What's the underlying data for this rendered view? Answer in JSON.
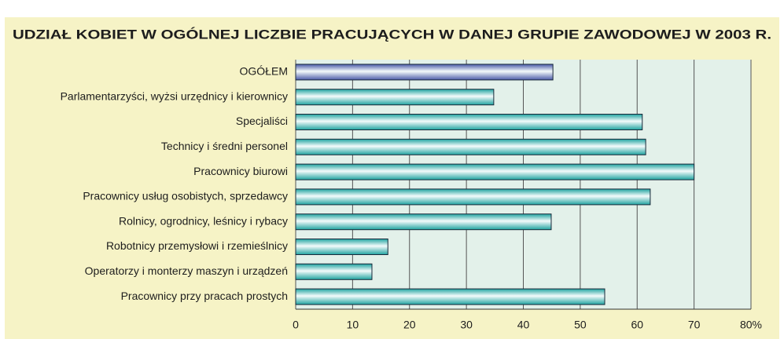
{
  "chart_data": {
    "type": "barh",
    "title": "UDZIAŁ KOBIET W OGÓLNEJ LICZBIE PRACUJĄCYCH W DANEJ GRUPIE ZAWODOWEJ W 2003 R.",
    "categories": [
      "OGÓŁEM",
      "Parlamentarzyści, wyżsi urzędnicy i kierownicy",
      "Specjaliści",
      "Technicy i średni personel",
      "Pracownicy biurowi",
      "Pracownicy usług osobistych, sprzedawcy",
      "Rolnicy, ogrodnicy, leśnicy i rybacy",
      "Robotnicy przemysłowi i rzemieślnicy",
      "Operatorzy i monterzy maszyn i urządzeń",
      "Pracownicy przy pracach prostych"
    ],
    "values": [
      45.2,
      34.8,
      60.9,
      61.5,
      70,
      62.3,
      44.9,
      16.2,
      13.4,
      54.3
    ],
    "colors": [
      "#4a5aa8",
      "#1fa3a0",
      "#1fa3a0",
      "#1fa3a0",
      "#1fa3a0",
      "#1fa3a0",
      "#1fa3a0",
      "#1fa3a0",
      "#1fa3a0",
      "#1fa3a0"
    ],
    "xlim": [
      0,
      80
    ],
    "xticks": [
      0,
      10,
      20,
      30,
      40,
      50,
      60,
      70,
      {
        "value": 80,
        "label": "80%"
      }
    ],
    "grid": true
  }
}
